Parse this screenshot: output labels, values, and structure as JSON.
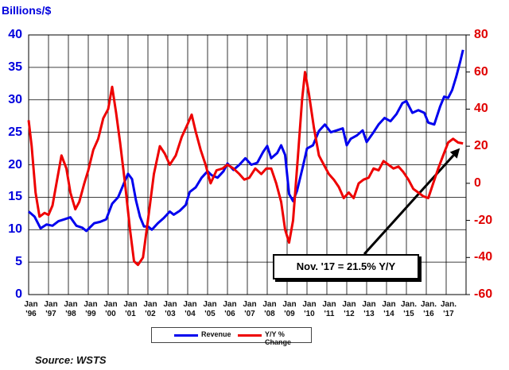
{
  "chart_data": {
    "type": "line",
    "ylabel": "Billions/$",
    "y_left_range": [
      0,
      40
    ],
    "y_left_ticks": [
      0,
      5,
      10,
      15,
      20,
      25,
      30,
      35,
      40
    ],
    "y_right_range": [
      -60,
      80
    ],
    "y_right_ticks": [
      -60,
      -40,
      -20,
      0,
      20,
      40,
      60,
      80
    ],
    "x_range": [
      1996.0,
      2018.0
    ],
    "x_ticks": [
      {
        "year": 1996,
        "top": "Jan",
        "bottom": "'96"
      },
      {
        "year": 1997,
        "top": "Jan",
        "bottom": "'97"
      },
      {
        "year": 1998,
        "top": "Jan",
        "bottom": "'98"
      },
      {
        "year": 1999,
        "top": "Jan",
        "bottom": "'99"
      },
      {
        "year": 2000,
        "top": "Jan",
        "bottom": "'00"
      },
      {
        "year": 2001,
        "top": "Jan",
        "bottom": "'01"
      },
      {
        "year": 2002,
        "top": "Jan",
        "bottom": "'02"
      },
      {
        "year": 2003,
        "top": "Jan",
        "bottom": "'03"
      },
      {
        "year": 2004,
        "top": "Jan",
        "bottom": "'04"
      },
      {
        "year": 2005,
        "top": "Jan",
        "bottom": "'05"
      },
      {
        "year": 2006,
        "top": "Jan",
        "bottom": "'06"
      },
      {
        "year": 2007,
        "top": "Jan",
        "bottom": "'07"
      },
      {
        "year": 2008,
        "top": "Jan",
        "bottom": "'08"
      },
      {
        "year": 2009,
        "top": "Jan",
        "bottom": "'09"
      },
      {
        "year": 2010,
        "top": "Jan",
        "bottom": "'10"
      },
      {
        "year": 2011,
        "top": "Jan",
        "bottom": "'11"
      },
      {
        "year": 2012,
        "top": "Jan",
        "bottom": "'12"
      },
      {
        "year": 2013,
        "top": "Jan",
        "bottom": "'13"
      },
      {
        "year": 2014,
        "top": "Jan",
        "bottom": "'14"
      },
      {
        "year": 2015,
        "top": "Jan.",
        "bottom": "'15"
      },
      {
        "year": 2016,
        "top": "Jan.",
        "bottom": "'16"
      },
      {
        "year": 2017,
        "top": "Jan.",
        "bottom": "'17"
      }
    ],
    "grid": true,
    "series": [
      {
        "name": "Revenue",
        "axis": "left",
        "color": "#0000ee",
        "points": [
          [
            1996.0,
            12.8
          ],
          [
            1996.3,
            12.0
          ],
          [
            1996.6,
            10.2
          ],
          [
            1996.9,
            10.8
          ],
          [
            1997.2,
            10.6
          ],
          [
            1997.5,
            11.3
          ],
          [
            1997.8,
            11.6
          ],
          [
            1998.1,
            11.9
          ],
          [
            1998.4,
            10.6
          ],
          [
            1998.7,
            10.3
          ],
          [
            1998.9,
            9.8
          ],
          [
            1999.1,
            10.4
          ],
          [
            1999.3,
            11.0
          ],
          [
            1999.6,
            11.2
          ],
          [
            1999.9,
            11.6
          ],
          [
            2000.2,
            14.0
          ],
          [
            2000.5,
            15.0
          ],
          [
            2000.8,
            17.2
          ],
          [
            2001.0,
            18.6
          ],
          [
            2001.2,
            17.8
          ],
          [
            2001.4,
            14.5
          ],
          [
            2001.6,
            12.0
          ],
          [
            2001.8,
            10.5
          ],
          [
            2002.0,
            10.5
          ],
          [
            2002.2,
            10.0
          ],
          [
            2002.5,
            11.0
          ],
          [
            2002.8,
            11.8
          ],
          [
            2003.1,
            12.8
          ],
          [
            2003.3,
            12.3
          ],
          [
            2003.6,
            12.9
          ],
          [
            2003.9,
            13.8
          ],
          [
            2004.1,
            15.8
          ],
          [
            2004.4,
            16.5
          ],
          [
            2004.7,
            18.0
          ],
          [
            2005.0,
            19.0
          ],
          [
            2005.2,
            18.4
          ],
          [
            2005.5,
            18.0
          ],
          [
            2005.8,
            19.0
          ],
          [
            2006.0,
            20.2
          ],
          [
            2006.3,
            19.2
          ],
          [
            2006.6,
            20.0
          ],
          [
            2006.9,
            21.0
          ],
          [
            2007.2,
            20.0
          ],
          [
            2007.5,
            20.3
          ],
          [
            2007.8,
            22.0
          ],
          [
            2008.0,
            22.9
          ],
          [
            2008.2,
            21.0
          ],
          [
            2008.5,
            21.8
          ],
          [
            2008.7,
            23.0
          ],
          [
            2008.9,
            21.5
          ],
          [
            2009.1,
            15.5
          ],
          [
            2009.3,
            14.4
          ],
          [
            2009.5,
            16.0
          ],
          [
            2009.8,
            19.8
          ],
          [
            2010.0,
            22.5
          ],
          [
            2010.3,
            23.0
          ],
          [
            2010.6,
            25.2
          ],
          [
            2010.9,
            26.2
          ],
          [
            2011.2,
            25.0
          ],
          [
            2011.5,
            25.3
          ],
          [
            2011.8,
            25.6
          ],
          [
            2012.0,
            23.0
          ],
          [
            2012.2,
            24.0
          ],
          [
            2012.5,
            24.5
          ],
          [
            2012.8,
            25.3
          ],
          [
            2013.0,
            23.5
          ],
          [
            2013.3,
            24.8
          ],
          [
            2013.6,
            26.2
          ],
          [
            2013.9,
            27.2
          ],
          [
            2014.2,
            26.7
          ],
          [
            2014.5,
            27.8
          ],
          [
            2014.8,
            29.5
          ],
          [
            2015.0,
            29.8
          ],
          [
            2015.3,
            28.0
          ],
          [
            2015.6,
            28.4
          ],
          [
            2015.9,
            28.0
          ],
          [
            2016.1,
            26.5
          ],
          [
            2016.4,
            26.2
          ],
          [
            2016.7,
            29.0
          ],
          [
            2016.9,
            30.5
          ],
          [
            2017.1,
            30.3
          ],
          [
            2017.3,
            31.5
          ],
          [
            2017.5,
            33.5
          ],
          [
            2017.7,
            35.8
          ],
          [
            2017.85,
            37.7
          ]
        ]
      },
      {
        "name": "Y/Y % Change",
        "axis": "right",
        "color": "#ee0000",
        "points": [
          [
            1996.0,
            34
          ],
          [
            1996.15,
            20
          ],
          [
            1996.35,
            -5
          ],
          [
            1996.55,
            -18
          ],
          [
            1996.8,
            -16
          ],
          [
            1997.0,
            -17
          ],
          [
            1997.2,
            -12
          ],
          [
            1997.4,
            0
          ],
          [
            1997.65,
            15
          ],
          [
            1997.9,
            8
          ],
          [
            1998.1,
            -5
          ],
          [
            1998.35,
            -14
          ],
          [
            1998.55,
            -10
          ],
          [
            1998.8,
            0
          ],
          [
            1999.0,
            7
          ],
          [
            1999.25,
            18
          ],
          [
            1999.5,
            24
          ],
          [
            1999.75,
            35
          ],
          [
            2000.0,
            40
          ],
          [
            2000.2,
            52
          ],
          [
            2000.4,
            38
          ],
          [
            2000.6,
            22
          ],
          [
            2000.85,
            0
          ],
          [
            2001.1,
            -25
          ],
          [
            2001.3,
            -42
          ],
          [
            2001.5,
            -44
          ],
          [
            2001.75,
            -40
          ],
          [
            2002.0,
            -20
          ],
          [
            2002.3,
            5
          ],
          [
            2002.6,
            20
          ],
          [
            2002.85,
            16
          ],
          [
            2003.1,
            10
          ],
          [
            2003.4,
            15
          ],
          [
            2003.7,
            25
          ],
          [
            2004.0,
            32
          ],
          [
            2004.2,
            37
          ],
          [
            2004.4,
            28
          ],
          [
            2004.65,
            18
          ],
          [
            2004.9,
            10
          ],
          [
            2005.15,
            0
          ],
          [
            2005.45,
            7
          ],
          [
            2005.75,
            8
          ],
          [
            2006.0,
            10
          ],
          [
            2006.3,
            8
          ],
          [
            2006.6,
            5
          ],
          [
            2006.85,
            2
          ],
          [
            2007.1,
            3
          ],
          [
            2007.4,
            8
          ],
          [
            2007.7,
            5
          ],
          [
            2007.95,
            8
          ],
          [
            2008.2,
            8
          ],
          [
            2008.45,
            0
          ],
          [
            2008.7,
            -10
          ],
          [
            2008.9,
            -25
          ],
          [
            2009.1,
            -32
          ],
          [
            2009.3,
            -20
          ],
          [
            2009.55,
            15
          ],
          [
            2009.75,
            45
          ],
          [
            2009.9,
            60
          ],
          [
            2010.1,
            48
          ],
          [
            2010.35,
            30
          ],
          [
            2010.6,
            15
          ],
          [
            2010.85,
            10
          ],
          [
            2011.1,
            5
          ],
          [
            2011.35,
            2
          ],
          [
            2011.6,
            -2
          ],
          [
            2011.85,
            -8
          ],
          [
            2012.1,
            -5
          ],
          [
            2012.35,
            -8
          ],
          [
            2012.6,
            0
          ],
          [
            2012.85,
            2
          ],
          [
            2013.1,
            3
          ],
          [
            2013.35,
            8
          ],
          [
            2013.6,
            7
          ],
          [
            2013.85,
            12
          ],
          [
            2014.1,
            10
          ],
          [
            2014.35,
            8
          ],
          [
            2014.6,
            9
          ],
          [
            2014.85,
            6
          ],
          [
            2015.1,
            2
          ],
          [
            2015.35,
            -3
          ],
          [
            2015.6,
            -5
          ],
          [
            2015.85,
            -7
          ],
          [
            2016.1,
            -8
          ],
          [
            2016.35,
            0
          ],
          [
            2016.6,
            8
          ],
          [
            2016.85,
            15
          ],
          [
            2017.1,
            22
          ],
          [
            2017.35,
            24
          ],
          [
            2017.6,
            22
          ],
          [
            2017.85,
            21.5
          ]
        ]
      }
    ],
    "legend": {
      "position": "bottom",
      "items": [
        "Revenue",
        "Y/Y % Change"
      ]
    },
    "annotation": {
      "text": "Nov. '17 = 21.5% Y/Y",
      "point_year": 2017.85,
      "point_value": 21.5,
      "axis": "right"
    },
    "source": "Source: WSTS"
  }
}
